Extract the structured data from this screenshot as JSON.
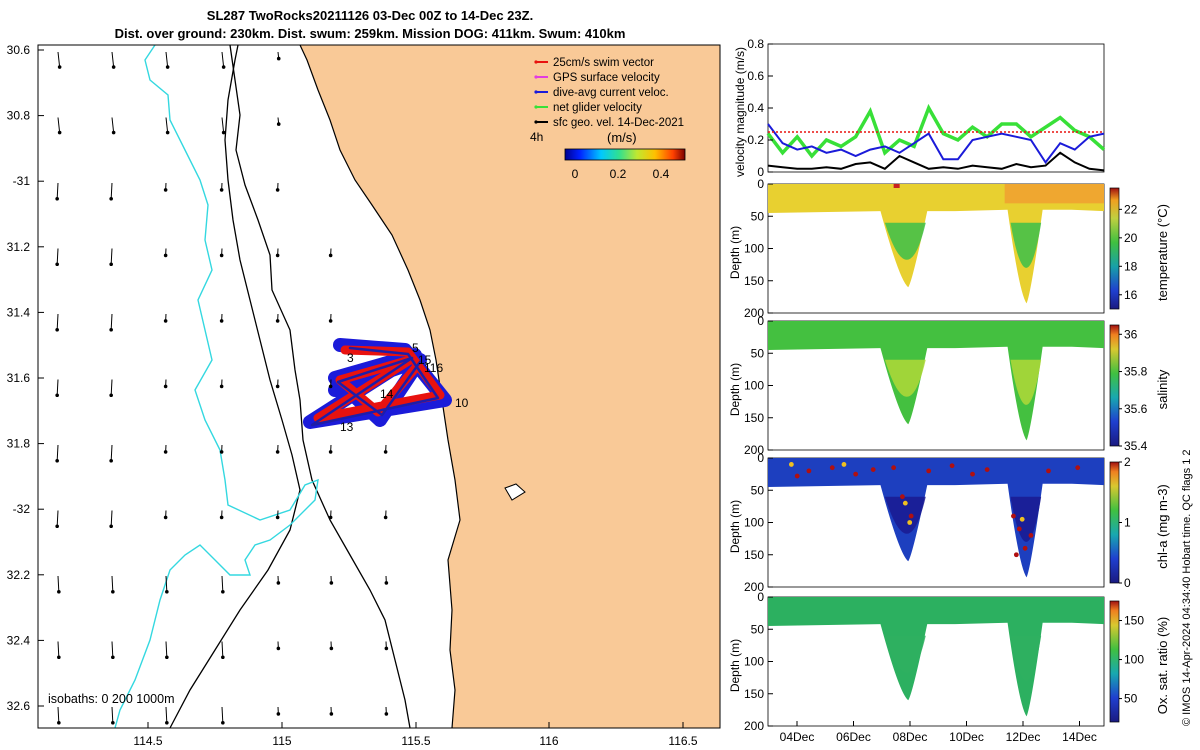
{
  "header": {
    "title_line1": "SL287 TwoRocks20211126 03-Dec 00Z to 14-Dec 23Z.",
    "title_line2": "Dist. over ground: 230km. Dist. swum: 259km. Mission DOG: 411km. Swum: 410km"
  },
  "colors": {
    "land": "#f9c997",
    "sea": "#ffffff",
    "shelf_contour": "#34d8e0",
    "swim": "#e8120f",
    "gps": "#e23ce0",
    "dac": "#1b1bd9",
    "net": "#38e038",
    "geo": "#000000",
    "track": "#1d1da8"
  },
  "map": {
    "lon_ticks": [
      "114.5",
      "115",
      "115.5",
      "116",
      "116.5"
    ],
    "lat_ticks": [
      "30.6",
      "30.8",
      "-31",
      "31.2",
      "31.4",
      "31.6",
      "31.8",
      "-32",
      "32.2",
      "32.4",
      "32.6"
    ],
    "isobath_note": "isobaths: 0   200  1000m",
    "time_step_label": "4h",
    "colorbar_unit": "(m/s)",
    "colorbar_ticks": [
      "0",
      "0.2",
      "0.4"
    ],
    "legend": [
      {
        "label": "25cm/s swim vector",
        "color": "#e8120f"
      },
      {
        "label": "GPS surface velocity",
        "color": "#e23ce0"
      },
      {
        "label": "dive-avg current veloc.",
        "color": "#1b1bd9"
      },
      {
        "label": "net glider velocity",
        "color": "#38e038"
      },
      {
        "label": "sfc geo. vel. 14-Dec-2021",
        "color": "#000000"
      }
    ],
    "track_labels": [
      "5",
      "15",
      "116",
      "14",
      "10",
      "13",
      "3"
    ]
  },
  "chart_data": [
    {
      "type": "line",
      "title": "",
      "ylabel": "velocity magnitude (m/s)",
      "ylim": [
        0,
        0.8
      ],
      "yticks": [
        "0",
        "0.2",
        "0.4",
        "0.6",
        "0.8"
      ],
      "x_days": [
        0,
        0.5,
        1,
        1.5,
        2,
        2.5,
        3,
        3.5,
        4,
        4.5,
        5,
        5.5,
        6,
        6.5,
        7,
        7.5,
        8,
        8.5,
        9,
        9.5,
        10,
        10.5,
        11,
        11.5
      ],
      "series": [
        {
          "name": "net glider velocity",
          "color": "#38e038",
          "values": [
            0.24,
            0.12,
            0.22,
            0.1,
            0.2,
            0.16,
            0.22,
            0.38,
            0.12,
            0.2,
            0.16,
            0.4,
            0.24,
            0.2,
            0.28,
            0.22,
            0.3,
            0.3,
            0.22,
            0.28,
            0.34,
            0.26,
            0.22,
            0.14
          ]
        },
        {
          "name": "dive-avg current veloc.",
          "color": "#1b1bd9",
          "values": [
            0.3,
            0.18,
            0.14,
            0.16,
            0.12,
            0.14,
            0.1,
            0.14,
            0.16,
            0.12,
            0.18,
            0.24,
            0.08,
            0.08,
            0.2,
            0.22,
            0.24,
            0.22,
            0.2,
            0.06,
            0.18,
            0.14,
            0.22,
            0.24
          ]
        },
        {
          "name": "sfc geo. vel.",
          "color": "#000000",
          "values": [
            0.04,
            0.03,
            0.02,
            0.02,
            0.03,
            0.02,
            0.05,
            0.06,
            0.02,
            0.1,
            0.06,
            0.02,
            0.03,
            0.02,
            0.04,
            0.03,
            0.02,
            0.05,
            0.03,
            0.04,
            0.12,
            0.06,
            0.02,
            0.01
          ]
        },
        {
          "name": "25cm/s swim",
          "color": "#e8120f",
          "dashed": true,
          "values": [
            0.25,
            0.25,
            0.25,
            0.25,
            0.25,
            0.25,
            0.25,
            0.25,
            0.25,
            0.25,
            0.25,
            0.25,
            0.25,
            0.25,
            0.25,
            0.25,
            0.25,
            0.25,
            0.25,
            0.25,
            0.25,
            0.25,
            0.25,
            0.25
          ]
        }
      ]
    },
    {
      "type": "heatmap",
      "ylabel": "Depth (m)",
      "variable": "temperature (°C)",
      "ylim": [
        200,
        0
      ],
      "yticks": [
        "0",
        "50",
        "100",
        "150",
        "200"
      ],
      "cbar_ticks": [
        "16",
        "18",
        "20",
        "22"
      ],
      "cbar_range": [
        15,
        23.5
      ],
      "dive_depths": [
        {
          "day": 4.8,
          "depth": 160
        },
        {
          "day": 8.8,
          "depth": 185
        }
      ]
    },
    {
      "type": "heatmap",
      "ylabel": "Depth (m)",
      "variable": "salinity",
      "ylim": [
        200,
        0
      ],
      "yticks": [
        "0",
        "50",
        "100",
        "150",
        "200"
      ],
      "cbar_ticks": [
        "35.4",
        "35.6",
        "35.8",
        "36"
      ],
      "cbar_range": [
        35.4,
        36.05
      ]
    },
    {
      "type": "heatmap",
      "ylabel": "Depth (m)",
      "variable": "chl-a (mg m-3)",
      "ylim": [
        200,
        0
      ],
      "yticks": [
        "0",
        "50",
        "100",
        "150",
        "200"
      ],
      "cbar_ticks": [
        "0",
        "1",
        "2"
      ],
      "cbar_range": [
        0,
        2
      ]
    },
    {
      "type": "heatmap",
      "ylabel": "Depth (m)",
      "variable": "Ox. sat. ratio (%)",
      "ylim": [
        200,
        0
      ],
      "yticks": [
        "0",
        "50",
        "100",
        "150",
        "200"
      ],
      "cbar_ticks": [
        "50",
        "100",
        "150"
      ],
      "cbar_range": [
        20,
        175
      ]
    }
  ],
  "time_axis": {
    "ticks": [
      "04Dec",
      "06Dec",
      "08Dec",
      "10Dec",
      "12Dec",
      "14Dec"
    ]
  },
  "footer": {
    "imos": "© IMOS 14-Apr-2024 04:34:40 Hobart time. QC flags 1  2"
  }
}
